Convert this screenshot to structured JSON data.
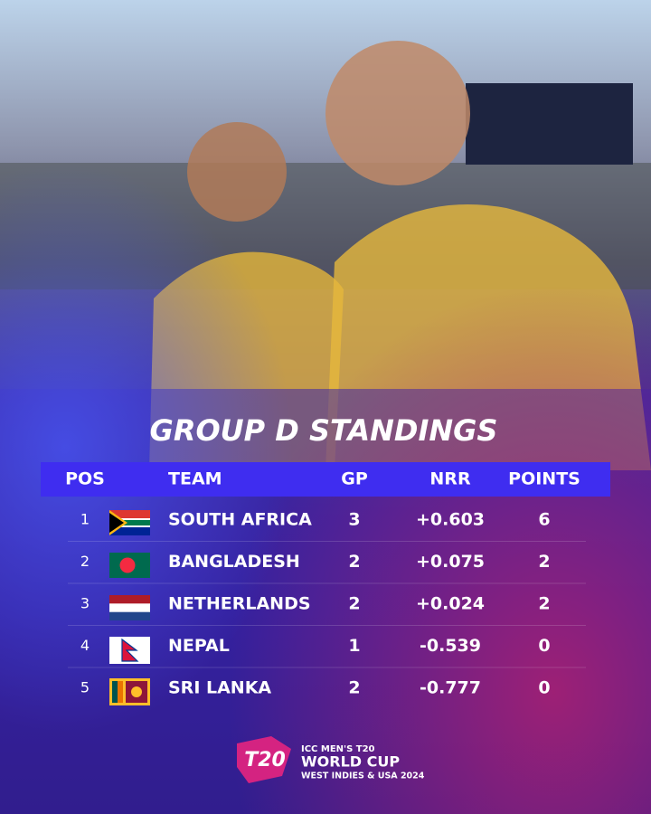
{
  "title": "GROUP D STANDINGS",
  "table": {
    "columns": [
      "POS",
      "TEAM",
      "GP",
      "NRR",
      "POINTS"
    ],
    "rows": [
      [
        1,
        "SOUTH AFRICA",
        3,
        "+0.603",
        6
      ],
      [
        2,
        "BANGLADESH",
        2,
        "+0.075",
        2
      ],
      [
        3,
        "NETHERLANDS",
        2,
        "+0.024",
        2
      ],
      [
        4,
        "NEPAL",
        1,
        "-0.539",
        0
      ],
      [
        5,
        "SRI LANKA",
        2,
        "-0.777",
        0
      ]
    ]
  },
  "logo": {
    "mark": "T20",
    "line1": "ICC MEN'S T20",
    "line2": "WORLD CUP",
    "line3": "WEST INDIES & USA 2024"
  }
}
